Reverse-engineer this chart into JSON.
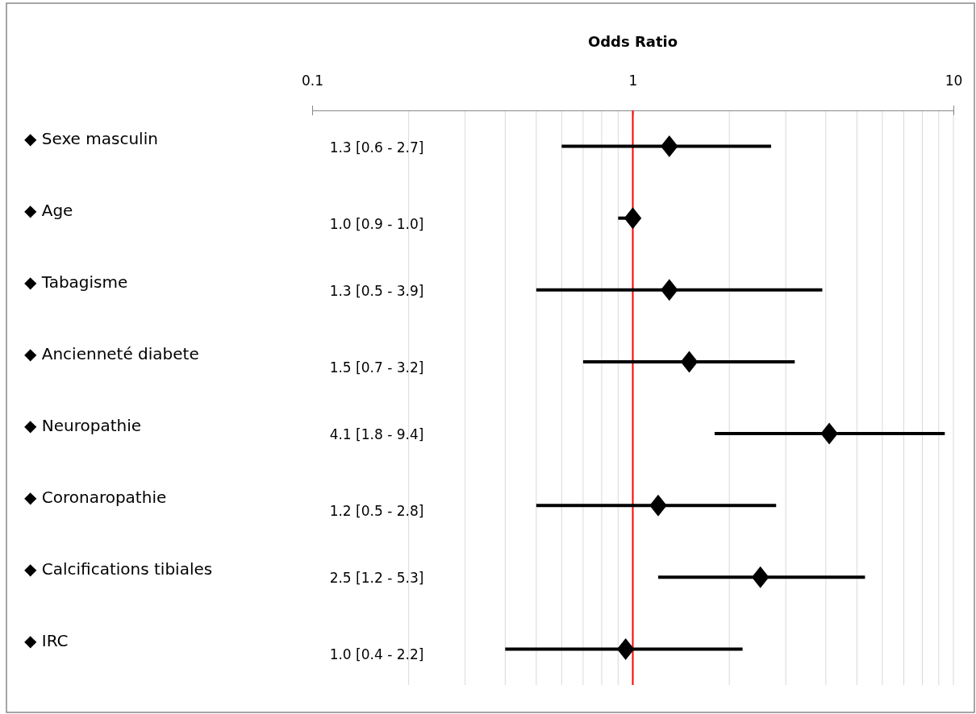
{
  "chart_data": {
    "type": "scatter",
    "orientation": "horizontal",
    "xlabel": "Odds Ratio",
    "categories": [
      "◆ Sexe masculin",
      "◆ Age",
      "◆ Tabagisme",
      "◆ Ancienneté diabete",
      "◆ Neuropathie",
      "◆ Coronaropathie",
      "◆ Calcifications tibiales",
      "◆ IRC"
    ],
    "series": [
      {
        "color": "#000000",
        "values": [
          1.3,
          1.0,
          1.3,
          1.5,
          4.1,
          1.2,
          2.5,
          0.95
        ],
        "errors": [
          [
            0.6,
            2.7
          ],
          [
            0.9,
            1.0
          ],
          [
            0.5,
            3.9
          ],
          [
            0.7,
            3.2
          ],
          [
            1.8,
            9.4
          ],
          [
            0.5,
            2.8
          ],
          [
            1.2,
            5.3
          ],
          [
            0.4,
            2.2
          ]
        ]
      }
    ],
    "annotations": [
      "1.3 [0.6 - 2.7]",
      "1.0 [0.9 - 1.0]",
      "1.3 [0.5 - 3.9]",
      "1.5 [0.7 - 3.2]",
      "4.1 [1.8 - 9.4]",
      "1.2 [0.5 - 2.8]",
      "2.5 [1.2 - 5.3]",
      "1.0 [0.4 - 2.2]"
    ],
    "log": "x",
    "xlim": [
      0.1,
      10
    ],
    "xticks": [
      0.1,
      {
        "value": 0.2,
        "label": null
      },
      {
        "value": 0.3,
        "label": null
      },
      {
        "value": 0.4,
        "label": null
      },
      {
        "value": 0.5,
        "label": null
      },
      {
        "value": 0.6,
        "label": null
      },
      {
        "value": 0.7,
        "label": null
      },
      {
        "value": 0.8,
        "label": null
      },
      {
        "value": 0.9,
        "label": null
      },
      1,
      {
        "value": 2,
        "label": null
      },
      {
        "value": 3,
        "label": null
      },
      {
        "value": 4,
        "label": null
      },
      {
        "value": 5,
        "label": null
      },
      {
        "value": 6,
        "label": null
      },
      {
        "value": 7,
        "label": null
      },
      {
        "value": 8,
        "label": null
      },
      {
        "value": 9,
        "label": null
      },
      10
    ],
    "grid": "x",
    "marker": "diamond",
    "ref_lines": [
      {
        "axis": "x",
        "value": 1,
        "color": "#ff0000"
      }
    ]
  }
}
